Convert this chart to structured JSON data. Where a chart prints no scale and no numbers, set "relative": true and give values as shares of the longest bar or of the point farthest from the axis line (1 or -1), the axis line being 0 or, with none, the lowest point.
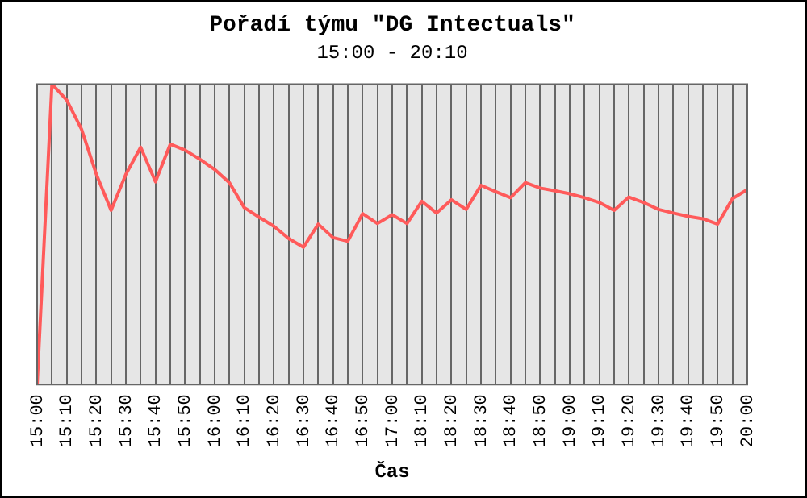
{
  "chart_data": {
    "type": "line",
    "title": "Pořadí týmu \"DG Intectuals\"",
    "subtitle": "15:00 - 20:10",
    "xlabel": "Čas",
    "categories": [
      "15:00",
      null,
      "15:10",
      null,
      "15:20",
      null,
      "15:30",
      null,
      "15:40",
      null,
      "15:50",
      null,
      "16:00",
      null,
      "16:10",
      null,
      "16:20",
      null,
      "16:30",
      null,
      "16:40",
      null,
      "16:50",
      null,
      "17:00",
      null,
      "18:10",
      null,
      "18:20",
      null,
      "18:30",
      null,
      "18:40",
      null,
      "18:50",
      null,
      "19:00",
      null,
      "19:10",
      null,
      "19:20",
      null,
      "19:30",
      null,
      "19:40",
      null,
      "19:50",
      null,
      "20:00"
    ],
    "relative": true,
    "series": [
      {
        "color": "#ff5a5a",
        "values": [
          0,
          1,
          0.947,
          0.85,
          0.7,
          0.58,
          0.7,
          0.79,
          0.675,
          0.8,
          0.78,
          0.75,
          0.716,
          0.672,
          0.589,
          0.557,
          0.527,
          0.486,
          0.457,
          0.534,
          0.489,
          0.477,
          0.569,
          0.536,
          0.565,
          0.536,
          0.61,
          0.571,
          0.615,
          0.583,
          0.663,
          0.642,
          0.622,
          0.672,
          0.654,
          0.645,
          0.635,
          0.622,
          0.606,
          0.58,
          0.624,
          0.606,
          0.583,
          0.571,
          0.56,
          0.552,
          0.534,
          0.619,
          0.649
        ]
      }
    ],
    "grid": "x",
    "legend": false,
    "marker": "none",
    "line_style": "solid"
  }
}
